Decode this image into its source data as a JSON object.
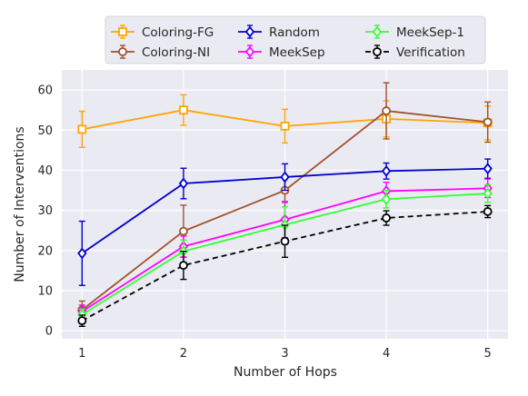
{
  "chart_data": {
    "type": "line",
    "xlabel": "Number of Hops",
    "ylabel": "Number of Interventions",
    "x": [
      1,
      2,
      3,
      4,
      5
    ],
    "xticks": [
      "1",
      "2",
      "3",
      "4",
      "5"
    ],
    "yticks": [
      "0",
      "10",
      "20",
      "30",
      "40",
      "50",
      "60"
    ],
    "xlim": [
      0.8,
      5.2
    ],
    "ylim": [
      -2,
      65
    ],
    "grid": true,
    "legend_position": "top",
    "series": [
      {
        "name": "Coloring-FG",
        "color": "#ffa500",
        "marker": "square",
        "dash": false,
        "values": [
          50.2,
          55.0,
          51.0,
          52.8,
          51.8
        ],
        "err": [
          4.5,
          3.8,
          4.2,
          4.5,
          4.2
        ]
      },
      {
        "name": "Coloring-NI",
        "color": "#a0522d",
        "marker": "circle",
        "dash": false,
        "values": [
          5.2,
          24.8,
          35.0,
          54.8,
          52.0
        ],
        "err": [
          2.2,
          6.5,
          3.0,
          7.0,
          5.0
        ]
      },
      {
        "name": "Random",
        "color": "#0000cd",
        "marker": "diamond",
        "dash": false,
        "values": [
          19.3,
          36.7,
          38.3,
          39.8,
          40.4
        ],
        "err": [
          8.0,
          3.8,
          3.3,
          2.0,
          2.4
        ]
      },
      {
        "name": "MeekSep",
        "color": "#ff00ff",
        "marker": "diamond",
        "dash": false,
        "values": [
          4.8,
          21.0,
          27.7,
          34.8,
          35.5
        ],
        "err": [
          1.6,
          2.6,
          4.5,
          2.2,
          2.3
        ]
      },
      {
        "name": "MeekSep-1",
        "color": "#32ff32",
        "marker": "diamond",
        "dash": false,
        "values": [
          4.0,
          19.8,
          26.4,
          32.8,
          34.2
        ],
        "err": [
          1.4,
          2.8,
          4.5,
          2.2,
          2.2
        ]
      },
      {
        "name": "Verification",
        "color": "#000000",
        "marker": "circle",
        "dash": true,
        "values": [
          2.5,
          16.3,
          22.3,
          28.1,
          29.7
        ],
        "err": [
          1.4,
          3.5,
          4.0,
          1.8,
          1.5
        ]
      }
    ]
  }
}
